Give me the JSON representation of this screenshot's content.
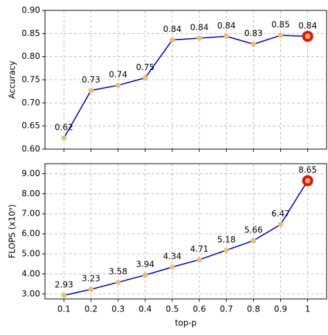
{
  "chart_data": [
    {
      "type": "line",
      "ylabel": "Accuracy",
      "x": [
        0.1,
        0.2,
        0.3,
        0.4,
        0.5,
        0.6,
        0.7,
        0.8,
        0.9,
        1.0
      ],
      "series": [
        {
          "color": "#0000cc",
          "marker_color": "#e8c070",
          "values": [
            0.624,
            0.727,
            0.738,
            0.754,
            0.836,
            0.84,
            0.844,
            0.827,
            0.846,
            0.844
          ],
          "value_labels": [
            "0.62",
            "0.73",
            "0.74",
            "0.75",
            "0.84",
            "0.84",
            "0.84",
            "0.83",
            "0.85",
            "0.84"
          ]
        }
      ],
      "highlight_x": 1.0,
      "highlight_color": "#e8120c",
      "xlim": [
        0.03,
        1.07
      ],
      "xticks": [
        0.1,
        0.2,
        0.3,
        0.4,
        0.5,
        0.6,
        0.7,
        0.8,
        0.9,
        1.0
      ],
      "ylim": [
        0.6,
        0.9
      ],
      "yticks": [
        {
          "value": 0.6,
          "label": "0.60"
        },
        {
          "value": 0.65,
          "label": "0.65"
        },
        {
          "value": 0.7,
          "label": "0.70"
        },
        {
          "value": 0.75,
          "label": "0.75"
        },
        {
          "value": 0.8,
          "label": "0.80"
        },
        {
          "value": 0.85,
          "label": "0.85"
        },
        {
          "value": 0.9,
          "label": "0.90"
        }
      ],
      "grid": true
    },
    {
      "type": "line",
      "xlabel": "top-p",
      "ylabel": "FLOPS (x10⁹)",
      "x": [
        0.1,
        0.2,
        0.3,
        0.4,
        0.5,
        0.6,
        0.7,
        0.8,
        0.9,
        1.0
      ],
      "series": [
        {
          "color": "#0000cc",
          "marker_color": "#e8c070",
          "values": [
            2.93,
            3.23,
            3.58,
            3.94,
            4.34,
            4.71,
            5.18,
            5.66,
            6.47,
            8.65
          ]
        }
      ],
      "highlight_x": 1.0,
      "highlight_color": "#e8120c",
      "xlim": [
        0.03,
        1.07
      ],
      "xticks": [
        0.1,
        0.2,
        0.3,
        0.4,
        0.5,
        0.6,
        0.7,
        0.8,
        0.9,
        1.0
      ],
      "ylim": [
        2.75,
        9.5
      ],
      "yticks": [
        {
          "value": 3,
          "label": "3.00"
        },
        {
          "value": 4,
          "label": "4.00"
        },
        {
          "value": 5,
          "label": "5.00"
        },
        {
          "value": 6,
          "label": "6.00"
        },
        {
          "value": 7,
          "label": "7.00"
        },
        {
          "value": 8,
          "label": "8.00"
        },
        {
          "value": 9,
          "label": "9.00"
        }
      ],
      "grid": true
    }
  ]
}
